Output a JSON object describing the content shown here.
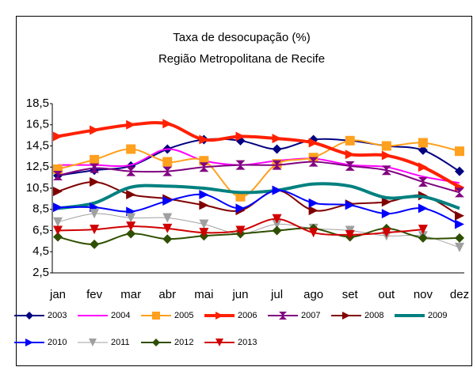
{
  "chart_data": {
    "type": "line",
    "title": "Taxa de desocupação (%)",
    "subtitle": "Região Metropolitana de Recife",
    "categories": [
      "jan",
      "fev",
      "mar",
      "abr",
      "mai",
      "jun",
      "jul",
      "ago",
      "set",
      "out",
      "nov",
      "dez"
    ],
    "ylim": [
      2.5,
      18.5
    ],
    "yticks": [
      {
        "value": 2.5,
        "label": "2,5"
      },
      {
        "value": 4.5,
        "label": "4,5"
      },
      {
        "value": 6.5,
        "label": "6,5"
      },
      {
        "value": 8.5,
        "label": "8,5"
      },
      {
        "value": 10.5,
        "label": "10,5"
      },
      {
        "value": 12.5,
        "label": "12,5"
      },
      {
        "value": 14.5,
        "label": "14,5"
      },
      {
        "value": 16.5,
        "label": "16,5"
      },
      {
        "value": 18.5,
        "label": "18,5"
      }
    ],
    "grid": false,
    "smooth": true,
    "legend": "bottom",
    "series": [
      {
        "name": "2003",
        "color": "#000080",
        "marker": "diamond",
        "line_width": 2,
        "values": [
          11.7,
          12.2,
          12.6,
          14.2,
          15.1,
          15.0,
          14.2,
          15.1,
          15.0,
          14.5,
          14.1,
          12.1
        ]
      },
      {
        "name": "2004",
        "color": "#ff00ff",
        "marker": "none",
        "line_width": 2,
        "values": [
          12.7,
          12.7,
          12.7,
          14.2,
          13.1,
          12.7,
          13.1,
          13.3,
          12.7,
          12.5,
          11.6,
          11.0
        ]
      },
      {
        "name": "2005",
        "color": "#ffa01e",
        "marker": "square",
        "line_width": 2,
        "values": [
          12.3,
          13.2,
          14.2,
          13.0,
          13.1,
          9.7,
          12.8,
          13.4,
          15.0,
          14.5,
          14.8,
          14.0
        ]
      },
      {
        "name": "2006",
        "color": "#ff2000",
        "marker": "right",
        "line_width": 4,
        "values": [
          15.4,
          16.0,
          16.5,
          16.6,
          15.1,
          15.4,
          15.2,
          14.8,
          13.7,
          13.6,
          12.5,
          10.6
        ]
      },
      {
        "name": "2007",
        "color": "#800080",
        "marker": "bowtie",
        "line_width": 2,
        "values": [
          11.7,
          12.4,
          12.1,
          12.1,
          12.5,
          12.7,
          12.7,
          13.0,
          12.6,
          12.2,
          11.1,
          10.1
        ]
      },
      {
        "name": "2008",
        "color": "#800000",
        "marker": "right",
        "line_width": 2,
        "values": [
          10.2,
          11.1,
          9.9,
          9.5,
          8.9,
          8.4,
          10.3,
          8.4,
          9.0,
          9.2,
          9.8,
          7.9
        ]
      },
      {
        "name": "2009",
        "color": "#008080",
        "marker": "none",
        "line_width": 4,
        "values": [
          8.6,
          9.1,
          10.6,
          10.7,
          10.5,
          10.1,
          10.3,
          10.9,
          10.7,
          9.6,
          9.7,
          8.6
        ]
      },
      {
        "name": "2010",
        "color": "#0000ff",
        "marker": "right",
        "line_width": 2,
        "values": [
          8.7,
          8.7,
          8.3,
          9.3,
          9.9,
          8.6,
          10.3,
          9.1,
          8.9,
          8.1,
          8.6,
          7.1
        ]
      },
      {
        "name": "2011",
        "color": "#a0a0a0",
        "marker": "down",
        "line_width": 1,
        "values": [
          7.3,
          8.1,
          7.7,
          7.7,
          7.1,
          6.2,
          7.1,
          6.7,
          6.5,
          6.0,
          6.0,
          4.9
        ]
      },
      {
        "name": "2012",
        "color": "#2f4f00",
        "marker": "diamond",
        "line_width": 2,
        "values": [
          5.9,
          5.2,
          6.2,
          5.7,
          6.0,
          6.2,
          6.5,
          6.7,
          5.9,
          6.7,
          5.8,
          5.8
        ]
      },
      {
        "name": "2013",
        "color": "#d00000",
        "marker": "down",
        "line_width": 2,
        "values": [
          6.5,
          6.6,
          6.9,
          6.7,
          6.3,
          6.5,
          7.6,
          6.3,
          6.1,
          6.3,
          6.6,
          null
        ]
      }
    ]
  }
}
